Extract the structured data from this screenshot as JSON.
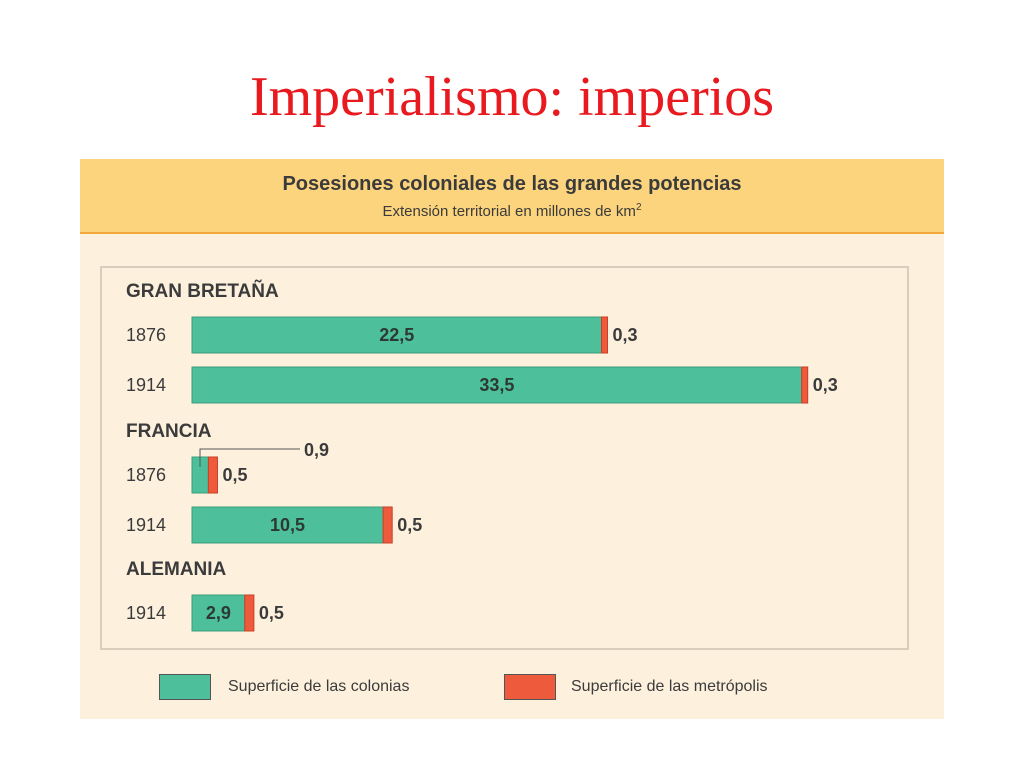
{
  "slide": {
    "title": "Imperialismo: imperios"
  },
  "colors": {
    "colonies": "#4dbf9b",
    "metropolis": "#ee5a3c",
    "header_bg": "#fbd47d",
    "panel_bg": "#fdf1de",
    "title": "#e8191f"
  },
  "chart_data": {
    "type": "bar",
    "orientation": "horizontal",
    "stacked": true,
    "title": "Posesiones coloniales de las grandes potencias",
    "subtitle": "Extensión territorial en millones de km",
    "subtitle_sup": "2",
    "series": [
      {
        "name": "Superficie de las colonias",
        "color": "#4dbf9b"
      },
      {
        "name": "Superficie de las metrópolis",
        "color": "#ee5a3c"
      }
    ],
    "groups": [
      {
        "name": "GRAN BRETAÑA",
        "rows": [
          {
            "year": "1876",
            "colonies": 22.5,
            "metropolis": 0.3,
            "colonies_label": "22,5",
            "metropolis_label": "0,3"
          },
          {
            "year": "1914",
            "colonies": 33.5,
            "metropolis": 0.3,
            "colonies_label": "33,5",
            "metropolis_label": "0,3"
          }
        ]
      },
      {
        "name": "FRANCIA",
        "rows": [
          {
            "year": "1876",
            "colonies": 0.9,
            "metropolis": 0.5,
            "colonies_label": "0,9",
            "metropolis_label": "0,5",
            "colonies_label_callout": true
          },
          {
            "year": "1914",
            "colonies": 10.5,
            "metropolis": 0.5,
            "colonies_label": "10,5",
            "metropolis_label": "0,5"
          }
        ]
      },
      {
        "name": "ALEMANIA",
        "rows": [
          {
            "year": "1914",
            "colonies": 2.9,
            "metropolis": 0.5,
            "colonies_label": "2,9",
            "metropolis_label": "0,5"
          }
        ]
      }
    ],
    "legend_position": "bottom",
    "grid": false
  }
}
